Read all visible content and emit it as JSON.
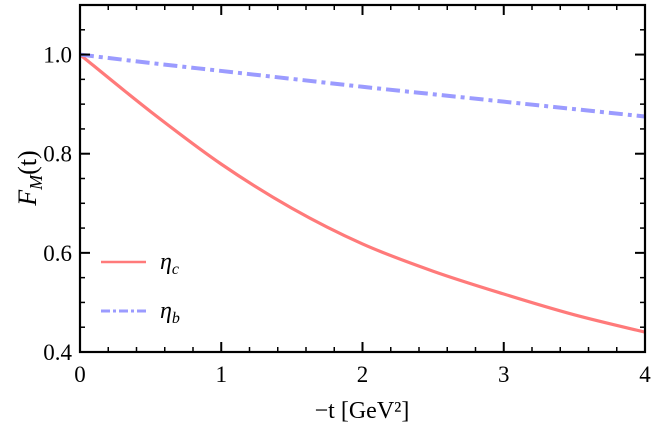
{
  "chart_data": {
    "type": "line",
    "xlabel": "−t [GeV²]",
    "ylabel_main": "F",
    "ylabel_sub": "M",
    "ylabel_tail": "(t)",
    "xlim": [
      0,
      4
    ],
    "ylim": [
      0.4,
      1.1
    ],
    "xticks": [
      "0",
      "1",
      "2",
      "3",
      "4"
    ],
    "yticks": [
      "0.4",
      "0.6",
      "0.8",
      "1.0"
    ],
    "grid": false,
    "legend_position": "bottom-left",
    "x": [
      0,
      0.5,
      1,
      1.5,
      2,
      2.5,
      3,
      3.5,
      4
    ],
    "series": [
      {
        "name": "η",
        "sub": "c",
        "color": "#ff7a7a",
        "style": "solid",
        "values": [
          1.0,
          0.885,
          0.779,
          0.69,
          0.618,
          0.563,
          0.517,
          0.475,
          0.44
        ]
      },
      {
        "name": "η",
        "sub": "b",
        "color": "#9b9bff",
        "style": "dashdot",
        "values": [
          1.0,
          0.983,
          0.967,
          0.951,
          0.935,
          0.92,
          0.905,
          0.89,
          0.875
        ]
      }
    ]
  }
}
